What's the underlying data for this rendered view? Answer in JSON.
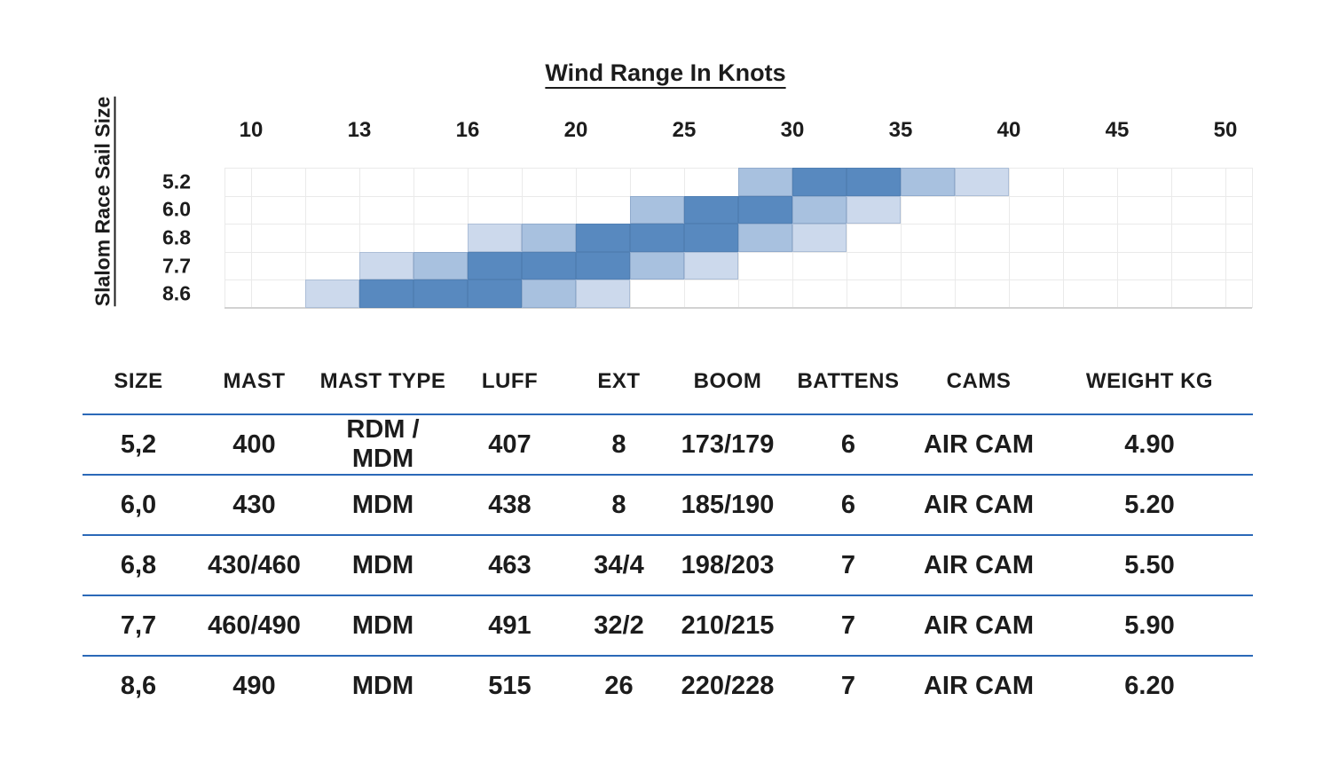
{
  "chart_data": [
    {
      "type": "heatmap",
      "title": "Wind Range In Knots",
      "xlabel": "Wind Range In Knots",
      "ylabel": "Slalom Race Sail Size",
      "x_tick_labels": [
        "10",
        "13",
        "16",
        "20",
        "25",
        "30",
        "35",
        "40",
        "45",
        "50"
      ],
      "column_boundaries_knots": [
        10,
        11.5,
        13,
        14.5,
        16,
        18,
        20,
        22.5,
        25,
        27.5,
        30,
        32.5,
        35,
        37.5,
        40,
        42.5,
        45,
        47.5,
        50
      ],
      "categories": [
        "5.2",
        "6.0",
        "6.8",
        "7.7",
        "8.6"
      ],
      "grid": true,
      "legend": "none",
      "intensity_levels": [
        "light",
        "medium",
        "dark"
      ],
      "colors": {
        "dark": "#5889bf",
        "medium": "#a8c1df",
        "light": "#ccd9ec",
        "grid": "#eaeaea",
        "axis": "#d2d2d2"
      },
      "rows": [
        {
          "size": "5.2",
          "wind_cells": [
            {
              "from_knots": 27.5,
              "to_knots": 30,
              "level": "medium"
            },
            {
              "from_knots": 30,
              "to_knots": 32.5,
              "level": "dark"
            },
            {
              "from_knots": 32.5,
              "to_knots": 35,
              "level": "dark"
            },
            {
              "from_knots": 35,
              "to_knots": 37.5,
              "level": "medium"
            },
            {
              "from_knots": 37.5,
              "to_knots": 40,
              "level": "light"
            }
          ]
        },
        {
          "size": "6.0",
          "wind_cells": [
            {
              "from_knots": 22.5,
              "to_knots": 25,
              "level": "medium"
            },
            {
              "from_knots": 25,
              "to_knots": 27.5,
              "level": "dark"
            },
            {
              "from_knots": 27.5,
              "to_knots": 30,
              "level": "dark"
            },
            {
              "from_knots": 30,
              "to_knots": 32.5,
              "level": "medium"
            },
            {
              "from_knots": 32.5,
              "to_knots": 35,
              "level": "light"
            }
          ]
        },
        {
          "size": "6.8",
          "wind_cells": [
            {
              "from_knots": 16,
              "to_knots": 18,
              "level": "light"
            },
            {
              "from_knots": 18,
              "to_knots": 20,
              "level": "medium"
            },
            {
              "from_knots": 20,
              "to_knots": 22.5,
              "level": "dark"
            },
            {
              "from_knots": 22.5,
              "to_knots": 25,
              "level": "dark"
            },
            {
              "from_knots": 25,
              "to_knots": 27.5,
              "level": "dark"
            },
            {
              "from_knots": 27.5,
              "to_knots": 30,
              "level": "medium"
            },
            {
              "from_knots": 30,
              "to_knots": 32.5,
              "level": "light"
            }
          ]
        },
        {
          "size": "7.7",
          "wind_cells": [
            {
              "from_knots": 13,
              "to_knots": 14.5,
              "level": "light"
            },
            {
              "from_knots": 14.5,
              "to_knots": 16,
              "level": "medium"
            },
            {
              "from_knots": 16,
              "to_knots": 18,
              "level": "dark"
            },
            {
              "from_knots": 18,
              "to_knots": 20,
              "level": "dark"
            },
            {
              "from_knots": 20,
              "to_knots": 22.5,
              "level": "dark"
            },
            {
              "from_knots": 22.5,
              "to_knots": 25,
              "level": "medium"
            },
            {
              "from_knots": 25,
              "to_knots": 27.5,
              "level": "light"
            }
          ]
        },
        {
          "size": "8.6",
          "wind_cells": [
            {
              "from_knots": 11.5,
              "to_knots": 13,
              "level": "light"
            },
            {
              "from_knots": 13,
              "to_knots": 14.5,
              "level": "dark"
            },
            {
              "from_knots": 14.5,
              "to_knots": 16,
              "level": "dark"
            },
            {
              "from_knots": 16,
              "to_knots": 18,
              "level": "dark"
            },
            {
              "from_knots": 18,
              "to_knots": 20,
              "level": "medium"
            },
            {
              "from_knots": 20,
              "to_knots": 22.5,
              "level": "light"
            }
          ]
        }
      ]
    },
    {
      "type": "table",
      "line_color": "#2b69b8",
      "columns": [
        "SIZE",
        "MAST",
        "MAST TYPE",
        "LUFF",
        "EXT",
        "BOOM",
        "BATTENS",
        "CAMS",
        "WEIGHT KG"
      ],
      "rows": [
        [
          "5,2",
          "400",
          "RDM / MDM",
          "407",
          "8",
          "173/179",
          "6",
          "AIR CAM",
          "4.90"
        ],
        [
          "6,0",
          "430",
          "MDM",
          "438",
          "8",
          "185/190",
          "6",
          "AIR CAM",
          "5.20"
        ],
        [
          "6,8",
          "430/460",
          "MDM",
          "463",
          "34/4",
          "198/203",
          "7",
          "AIR CAM",
          "5.50"
        ],
        [
          "7,7",
          "460/490",
          "MDM",
          "491",
          "32/2",
          "210/215",
          "7",
          "AIR CAM",
          "5.90"
        ],
        [
          "8,6",
          "490",
          "MDM",
          "515",
          "26",
          "220/228",
          "7",
          "AIR CAM",
          "6.20"
        ]
      ]
    }
  ]
}
